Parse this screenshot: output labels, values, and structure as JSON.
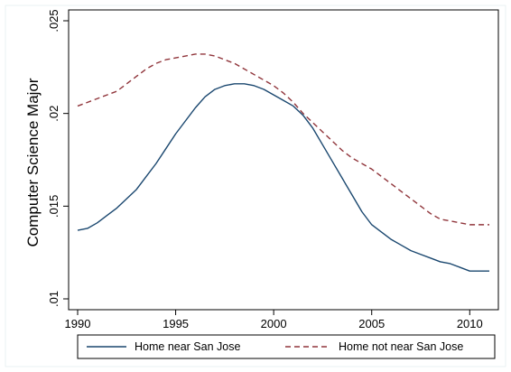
{
  "chart_data": {
    "type": "line",
    "ylabel": "Computer Science Major",
    "xlabel": "",
    "xlim": [
      1990,
      2011
    ],
    "ylim": [
      0.01,
      0.025
    ],
    "x_ticks": [
      1990,
      1995,
      2000,
      2005,
      2010
    ],
    "x_tick_labels": [
      "1990",
      "1995",
      "2000",
      "2005",
      "2010"
    ],
    "y_ticks": [
      0.01,
      0.015,
      0.02,
      0.025
    ],
    "y_tick_labels": [
      ".01",
      ".015",
      ".02",
      ".025"
    ],
    "grid": false,
    "legend_position": "bottom",
    "colors": {
      "series1": "#1a476f",
      "series2": "#90353b"
    },
    "series": [
      {
        "name": "Home near San Jose",
        "style": "solid",
        "x": [
          1990,
          1990.5,
          1991,
          1991.5,
          1992,
          1992.5,
          1993,
          1993.5,
          1994,
          1994.5,
          1995,
          1995.5,
          1996,
          1996.5,
          1997,
          1997.5,
          1998,
          1998.5,
          1999,
          1999.5,
          2000,
          2000.5,
          2001,
          2001.5,
          2002,
          2002.5,
          2003,
          2003.5,
          2004,
          2004.5,
          2005,
          2005.5,
          2006,
          2006.5,
          2007,
          2007.5,
          2008,
          2008.5,
          2009,
          2009.5,
          2010,
          2010.5,
          2011
        ],
        "values": [
          0.0137,
          0.0138,
          0.0141,
          0.0145,
          0.0149,
          0.0154,
          0.0159,
          0.0166,
          0.0173,
          0.0181,
          0.0189,
          0.0196,
          0.0203,
          0.0209,
          0.0213,
          0.0215,
          0.0216,
          0.0216,
          0.0215,
          0.0213,
          0.021,
          0.0207,
          0.0204,
          0.0199,
          0.0192,
          0.0183,
          0.0174,
          0.0165,
          0.0156,
          0.0147,
          0.014,
          0.0136,
          0.0132,
          0.0129,
          0.0126,
          0.0124,
          0.0122,
          0.012,
          0.0119,
          0.0117,
          0.0115,
          0.0115,
          0.0115
        ]
      },
      {
        "name": "Home not near San Jose",
        "style": "dashed",
        "x": [
          1990,
          1990.5,
          1991,
          1991.5,
          1992,
          1992.5,
          1993,
          1993.5,
          1994,
          1994.5,
          1995,
          1995.5,
          1996,
          1996.5,
          1997,
          1997.5,
          1998,
          1998.5,
          1999,
          1999.5,
          2000,
          2000.5,
          2001,
          2001.5,
          2002,
          2002.5,
          2003,
          2003.5,
          2004,
          2004.5,
          2005,
          2005.5,
          2006,
          2006.5,
          2007,
          2007.5,
          2008,
          2008.5,
          2009,
          2009.5,
          2010,
          2010.5,
          2011
        ],
        "values": [
          0.0204,
          0.0206,
          0.0208,
          0.021,
          0.0212,
          0.0216,
          0.022,
          0.0224,
          0.0227,
          0.0229,
          0.023,
          0.0231,
          0.0232,
          0.0232,
          0.0231,
          0.0229,
          0.0227,
          0.0224,
          0.0221,
          0.0218,
          0.0215,
          0.0211,
          0.0206,
          0.02,
          0.0195,
          0.019,
          0.0185,
          0.018,
          0.0176,
          0.0173,
          0.017,
          0.0166,
          0.0162,
          0.0158,
          0.0154,
          0.015,
          0.0146,
          0.0143,
          0.0142,
          0.0141,
          0.014,
          0.014,
          0.014
        ]
      }
    ]
  }
}
